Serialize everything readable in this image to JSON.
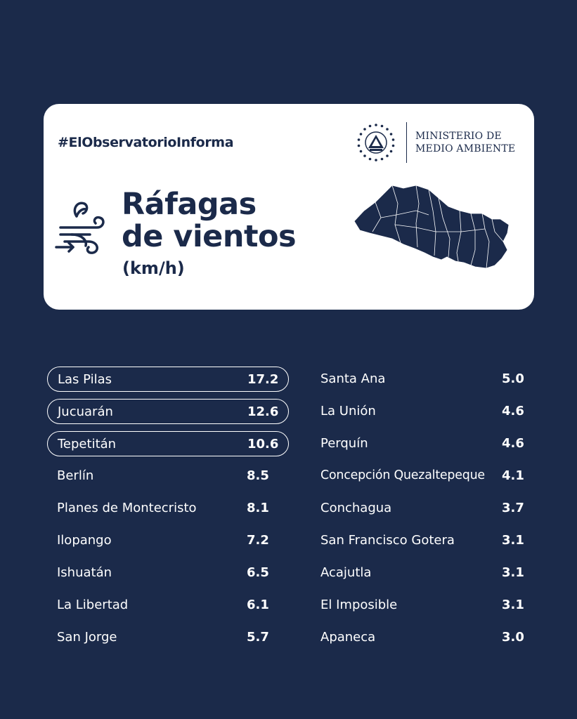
{
  "header": {
    "hashtag": "#ElObservatorioInforma",
    "ministry_line1": "MINISTERIO DE",
    "ministry_line2": "MEDIO AMBIENTE",
    "title_line1": "Ráfagas",
    "title_line2": "de vientos",
    "unit": "(km/h)",
    "icons": [
      "coat-of-arms-icon",
      "wind-icon",
      "el-salvador-map"
    ]
  },
  "colors": {
    "background": "#1b2a4a",
    "card": "#ffffff",
    "text_dark": "#1b2a4a",
    "text_light": "#ffffff"
  },
  "stations_left": [
    {
      "name": "Las Pilas",
      "value": "17.2",
      "highlighted": true
    },
    {
      "name": "Jucuarán",
      "value": "12.6",
      "highlighted": true
    },
    {
      "name": "Tepetitán",
      "value": "10.6",
      "highlighted": true
    },
    {
      "name": "Berlín",
      "value": "8.5",
      "highlighted": false
    },
    {
      "name": "Planes de Montecristo",
      "value": "8.1",
      "highlighted": false
    },
    {
      "name": "Ilopango",
      "value": "7.2",
      "highlighted": false
    },
    {
      "name": "Ishuatán",
      "value": "6.5",
      "highlighted": false
    },
    {
      "name": "La Libertad",
      "value": "6.1",
      "highlighted": false
    },
    {
      "name": "San Jorge",
      "value": "5.7",
      "highlighted": false
    }
  ],
  "stations_right": [
    {
      "name": "Santa Ana",
      "value": "5.0"
    },
    {
      "name": "La Unión",
      "value": "4.6"
    },
    {
      "name": "Perquín",
      "value": "4.6"
    },
    {
      "name": "Concepción Quezaltepeque",
      "value": "4.1"
    },
    {
      "name": "Conchagua",
      "value": "3.7"
    },
    {
      "name": "San Francisco Gotera",
      "value": "3.1"
    },
    {
      "name": "Acajutla",
      "value": "3.1"
    },
    {
      "name": "El Imposible",
      "value": "3.1"
    },
    {
      "name": "Apaneca",
      "value": "3.0"
    }
  ]
}
